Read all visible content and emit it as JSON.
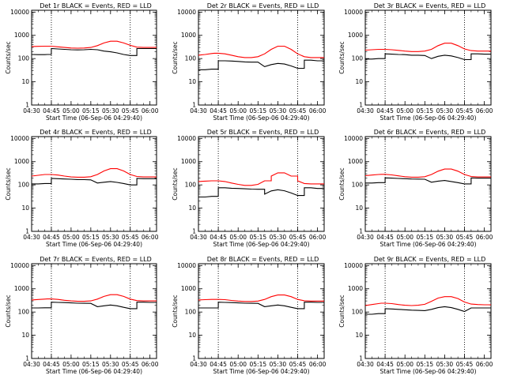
{
  "chart_data": [
    {
      "type": "line",
      "title": "Det 1r BLACK = Events, RED = LLD",
      "xlabel": "Start Time (06-Sep-06 04:29:40)",
      "ylabel": "Counts/sec",
      "x_tick_labels": [
        "04:30",
        "04:45",
        "05:00",
        "05:15",
        "05:30",
        "05:45",
        "06:00"
      ],
      "y_tick_labels": [
        "1",
        "10",
        "100",
        "1000",
        "10000"
      ],
      "ylim": [
        1,
        12000
      ],
      "y_scale": "log",
      "marker_lines": [
        "04:45",
        "05:45"
      ],
      "x": [
        "04:30",
        "04:35",
        "04:40",
        "04:42",
        "04:45",
        "04:50",
        "04:55",
        "05:00",
        "05:05",
        "05:10",
        "05:15",
        "05:20",
        "05:25",
        "05:30",
        "05:35",
        "05:40",
        "05:45",
        "05:50",
        "05:55",
        "06:00",
        "06:05"
      ],
      "series": [
        {
          "color": "#ff0000",
          "values": [
            330,
            335,
            340,
            340,
            340,
            320,
            300,
            285,
            280,
            285,
            300,
            360,
            470,
            560,
            560,
            470,
            370,
            310,
            300,
            300,
            300
          ]
        },
        {
          "color": "#000000",
          "values": [
            150,
            148,
            148,
            150,
            270,
            260,
            250,
            240,
            235,
            240,
            250,
            240,
            210,
            195,
            175,
            150,
            135,
            270,
            270,
            270,
            270
          ]
        }
      ]
    },
    {
      "type": "line",
      "title": "Det 2r BLACK = Events, RED = LLD",
      "xlabel": "Start Time (06-Sep-06 04:29:40)",
      "ylabel": "Counts/sec",
      "x_tick_labels": [
        "04:30",
        "04:45",
        "05:00",
        "05:15",
        "05:30",
        "05:45",
        "06:00"
      ],
      "y_tick_labels": [
        "1",
        "10",
        "100",
        "1000",
        "10000"
      ],
      "ylim": [
        1,
        12000
      ],
      "y_scale": "log",
      "marker_lines": [
        "04:45",
        "05:45"
      ],
      "x": [
        "04:30",
        "04:35",
        "04:40",
        "04:42",
        "04:45",
        "04:50",
        "04:55",
        "05:00",
        "05:05",
        "05:10",
        "05:15",
        "05:20",
        "05:25",
        "05:30",
        "05:35",
        "05:40",
        "05:45",
        "05:50",
        "05:55",
        "06:00",
        "06:05"
      ],
      "series": [
        {
          "color": "#ff0000",
          "values": [
            140,
            150,
            165,
            170,
            170,
            160,
            140,
            120,
            110,
            110,
            120,
            160,
            250,
            340,
            340,
            250,
            160,
            120,
            110,
            110,
            110
          ]
        },
        {
          "color": "#000000",
          "values": [
            33,
            33,
            35,
            35,
            80,
            80,
            78,
            75,
            72,
            70,
            70,
            45,
            55,
            62,
            58,
            48,
            38,
            85,
            85,
            80,
            80
          ]
        }
      ]
    },
    {
      "type": "line",
      "title": "Det 3r BLACK = Events, RED = LLD",
      "xlabel": "Start Time (06-Sep-06 04:29:40)",
      "ylabel": "Counts/sec",
      "x_tick_labels": [
        "04:30",
        "04:45",
        "05:00",
        "05:15",
        "05:30",
        "05:45",
        "06:00"
      ],
      "y_tick_labels": [
        "1",
        "10",
        "100",
        "1000",
        "10000"
      ],
      "ylim": [
        1,
        12000
      ],
      "y_scale": "log",
      "marker_lines": [
        "04:45",
        "05:45"
      ],
      "x": [
        "04:30",
        "04:35",
        "04:40",
        "04:42",
        "04:45",
        "04:50",
        "04:55",
        "05:00",
        "05:05",
        "05:10",
        "05:15",
        "05:20",
        "05:25",
        "05:30",
        "05:35",
        "05:40",
        "05:45",
        "05:50",
        "05:55",
        "06:00",
        "06:05"
      ],
      "series": [
        {
          "color": "#ff0000",
          "values": [
            230,
            240,
            250,
            250,
            250,
            240,
            225,
            210,
            200,
            200,
            210,
            250,
            360,
            460,
            460,
            360,
            260,
            220,
            210,
            210,
            210
          ]
        },
        {
          "color": "#000000",
          "values": [
            95,
            95,
            100,
            100,
            160,
            155,
            150,
            148,
            140,
            140,
            135,
            100,
            125,
            140,
            130,
            110,
            90,
            160,
            160,
            155,
            155
          ]
        }
      ]
    },
    {
      "type": "line",
      "title": "Det 4r BLACK = Events, RED = LLD",
      "xlabel": "Start Time (06-Sep-06 04:29:40)",
      "ylabel": "Counts/sec",
      "x_tick_labels": [
        "04:30",
        "04:45",
        "05:00",
        "05:15",
        "05:30",
        "05:45",
        "06:00"
      ],
      "y_tick_labels": [
        "1",
        "10",
        "100",
        "1000",
        "10000"
      ],
      "ylim": [
        1,
        12000
      ],
      "y_scale": "log",
      "marker_lines": [
        "04:45",
        "05:45"
      ],
      "x": [
        "04:30",
        "04:35",
        "04:40",
        "04:42",
        "04:45",
        "04:50",
        "04:55",
        "05:00",
        "05:05",
        "05:10",
        "05:15",
        "05:20",
        "05:25",
        "05:30",
        "05:35",
        "05:40",
        "05:45",
        "05:50",
        "05:55",
        "06:00",
        "06:05"
      ],
      "series": [
        {
          "color": "#ff0000",
          "values": [
            240,
            260,
            280,
            280,
            280,
            265,
            240,
            220,
            215,
            215,
            225,
            280,
            400,
            500,
            500,
            400,
            280,
            230,
            220,
            220,
            220
          ]
        },
        {
          "color": "#000000",
          "values": [
            110,
            110,
            115,
            115,
            190,
            185,
            180,
            175,
            170,
            168,
            165,
            120,
            130,
            140,
            128,
            115,
            100,
            190,
            185,
            185,
            185
          ]
        }
      ]
    },
    {
      "type": "line",
      "title": "Det 5r BLACK = Events, RED = LLD",
      "xlabel": "Start Time (06-Sep-06 04:29:40)",
      "ylabel": "Counts/sec",
      "x_tick_labels": [
        "04:30",
        "04:45",
        "05:00",
        "05:15",
        "05:30",
        "05:45",
        "06:00"
      ],
      "y_tick_labels": [
        "1",
        "10",
        "100",
        "1000",
        "10000"
      ],
      "ylim": [
        1,
        12000
      ],
      "y_scale": "log",
      "marker_lines": [
        "04:45",
        "05:45"
      ],
      "x": [
        "04:30",
        "04:35",
        "04:40",
        "04:42",
        "04:45",
        "04:50",
        "04:55",
        "05:00",
        "05:05",
        "05:10",
        "05:15",
        "05:20",
        "05:25",
        "05:30",
        "05:35",
        "05:40",
        "05:45",
        "05:50",
        "05:55",
        "06:00",
        "06:05"
      ],
      "series": [
        {
          "color": "#ff0000",
          "values": [
            140,
            145,
            150,
            150,
            150,
            140,
            120,
            105,
            95,
            95,
            105,
            150,
            240,
            330,
            330,
            240,
            150,
            115,
            110,
            110,
            110
          ]
        },
        {
          "color": "#000000",
          "values": [
            30,
            30,
            32,
            32,
            75,
            75,
            72,
            70,
            68,
            66,
            65,
            40,
            55,
            62,
            56,
            45,
            35,
            75,
            75,
            70,
            70
          ]
        }
      ]
    },
    {
      "type": "line",
      "title": "Det 6r BLACK = Events, RED = LLD",
      "xlabel": "Start Time (06-Sep-06 04:29:40)",
      "ylabel": "Counts/sec",
      "x_tick_labels": [
        "04:30",
        "04:45",
        "05:00",
        "05:15",
        "05:30",
        "05:45",
        "06:00"
      ],
      "y_tick_labels": [
        "1",
        "10",
        "100",
        "1000",
        "10000"
      ],
      "ylim": [
        1,
        12000
      ],
      "y_scale": "log",
      "marker_lines": [
        "04:45",
        "05:45"
      ],
      "x": [
        "04:30",
        "04:35",
        "04:40",
        "04:42",
        "04:45",
        "04:50",
        "04:55",
        "05:00",
        "05:05",
        "05:10",
        "05:15",
        "05:20",
        "05:25",
        "05:30",
        "05:35",
        "05:40",
        "05:45",
        "05:50",
        "05:55",
        "06:00",
        "06:05"
      ],
      "series": [
        {
          "color": "#ff0000",
          "values": [
            250,
            265,
            280,
            285,
            285,
            270,
            245,
            225,
            215,
            215,
            225,
            280,
            390,
            480,
            480,
            390,
            280,
            230,
            220,
            220,
            220
          ]
        },
        {
          "color": "#000000",
          "values": [
            120,
            120,
            125,
            125,
            200,
            195,
            190,
            185,
            180,
            178,
            175,
            130,
            145,
            155,
            140,
            125,
            110,
            200,
            195,
            195,
            195
          ]
        }
      ]
    },
    {
      "type": "line",
      "title": "Det 7r BLACK = Events, RED = LLD",
      "xlabel": "Start Time (06-Sep-06 04:29:40)",
      "ylabel": "Counts/sec",
      "x_tick_labels": [
        "04:30",
        "04:45",
        "05:00",
        "05:15",
        "05:30",
        "05:45",
        "06:00"
      ],
      "y_tick_labels": [
        "1",
        "10",
        "100",
        "1000",
        "10000"
      ],
      "ylim": [
        1,
        12000
      ],
      "y_scale": "log",
      "marker_lines": [
        "04:45",
        "05:45"
      ],
      "x": [
        "04:30",
        "04:35",
        "04:40",
        "04:42",
        "04:45",
        "04:50",
        "04:55",
        "05:00",
        "05:05",
        "05:10",
        "05:15",
        "05:20",
        "05:25",
        "05:30",
        "05:35",
        "05:40",
        "05:45",
        "05:50",
        "05:55",
        "06:00",
        "06:05"
      ],
      "series": [
        {
          "color": "#ff0000",
          "values": [
            330,
            345,
            360,
            365,
            365,
            350,
            320,
            300,
            290,
            290,
            300,
            360,
            470,
            560,
            560,
            470,
            360,
            310,
            300,
            300,
            300
          ]
        },
        {
          "color": "#000000",
          "values": [
            150,
            150,
            152,
            152,
            265,
            260,
            255,
            248,
            240,
            238,
            235,
            170,
            185,
            200,
            185,
            160,
            140,
            265,
            265,
            260,
            260
          ]
        }
      ]
    },
    {
      "type": "line",
      "title": "Det 8r BLACK = Events, RED = LLD",
      "xlabel": "Start Time (06-Sep-06 04:29:40)",
      "ylabel": "Counts/sec",
      "x_tick_labels": [
        "04:30",
        "04:45",
        "05:00",
        "05:15",
        "05:30",
        "05:45",
        "06:00"
      ],
      "y_tick_labels": [
        "1",
        "10",
        "100",
        "1000",
        "10000"
      ],
      "ylim": [
        1,
        12000
      ],
      "y_scale": "log",
      "marker_lines": [
        "04:45",
        "05:45"
      ],
      "x": [
        "04:30",
        "04:35",
        "04:40",
        "04:42",
        "04:45",
        "04:50",
        "04:55",
        "05:00",
        "05:05",
        "05:10",
        "05:15",
        "05:20",
        "05:25",
        "05:30",
        "05:35",
        "05:40",
        "05:45",
        "05:50",
        "05:55",
        "06:00",
        "06:05"
      ],
      "series": [
        {
          "color": "#ff0000",
          "values": [
            330,
            340,
            350,
            350,
            350,
            340,
            315,
            295,
            285,
            285,
            295,
            350,
            460,
            540,
            540,
            460,
            350,
            305,
            295,
            295,
            295
          ]
        },
        {
          "color": "#000000",
          "values": [
            150,
            150,
            150,
            150,
            265,
            260,
            255,
            248,
            240,
            238,
            235,
            170,
            185,
            200,
            185,
            160,
            140,
            265,
            265,
            260,
            260
          ]
        }
      ]
    },
    {
      "type": "line",
      "title": "Det 9r BLACK = Events, RED = LLD",
      "xlabel": "Start Time (06-Sep-06 04:29:40)",
      "ylabel": "Counts/sec",
      "x_tick_labels": [
        "04:30",
        "04:45",
        "05:00",
        "05:15",
        "05:30",
        "05:45",
        "06:00"
      ],
      "y_tick_labels": [
        "1",
        "10",
        "100",
        "1000",
        "10000"
      ],
      "ylim": [
        1,
        12000
      ],
      "y_scale": "log",
      "marker_lines": [
        "04:45",
        "05:45"
      ],
      "x": [
        "04:30",
        "04:35",
        "04:40",
        "04:42",
        "04:45",
        "04:50",
        "04:55",
        "05:00",
        "05:05",
        "05:10",
        "05:15",
        "05:20",
        "05:25",
        "05:30",
        "05:35",
        "05:40",
        "05:45",
        "05:50",
        "05:55",
        "06:00",
        "06:05"
      ],
      "series": [
        {
          "color": "#ff0000",
          "values": [
            190,
            210,
            230,
            240,
            240,
            230,
            210,
            195,
            190,
            195,
            215,
            290,
            400,
            460,
            460,
            380,
            270,
            220,
            210,
            205,
            205
          ]
        },
        {
          "color": "#000000",
          "values": [
            80,
            80,
            85,
            85,
            140,
            135,
            130,
            125,
            120,
            118,
            115,
            130,
            155,
            170,
            155,
            130,
            105,
            150,
            150,
            150,
            150
          ]
        }
      ]
    }
  ]
}
